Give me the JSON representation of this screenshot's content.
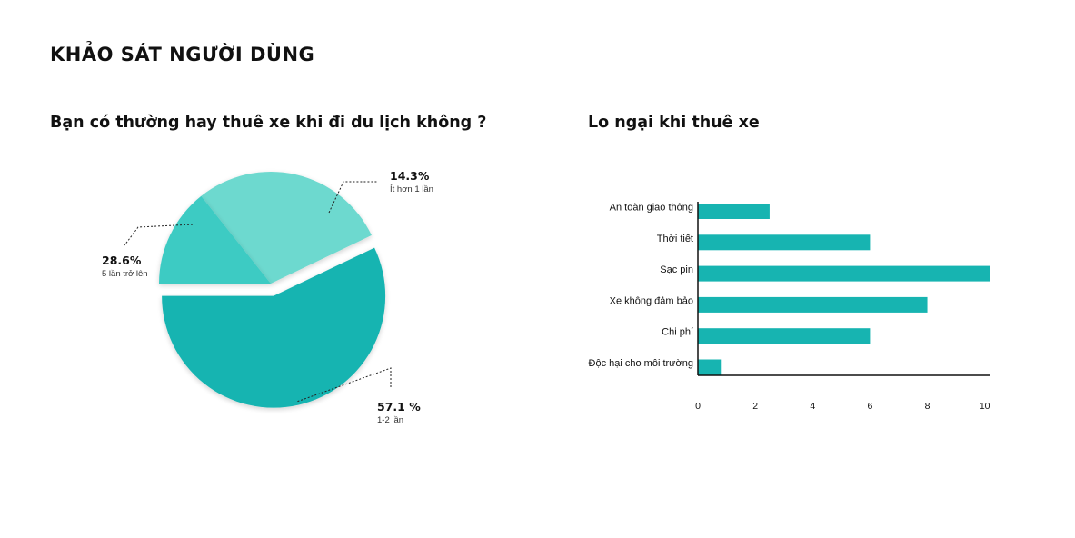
{
  "page": {
    "title": "KHẢO SÁT NGƯỜI DÙNG",
    "accent_color": "#2bb8b3"
  },
  "chart_data": [
    {
      "type": "pie",
      "title": "Bạn có thường hay thuê xe khi đi du lịch không ?",
      "slices": [
        {
          "label": "1-2 lần",
          "value_label": "57.1 %",
          "value": 57.1,
          "color": "#17b4b1",
          "exploded": true
        },
        {
          "label": "5 lần trở lên",
          "value_label": "28.6%",
          "value": 28.6,
          "color": "#6dd9cf",
          "exploded": false
        },
        {
          "label": "Ít hơn 1 lần",
          "value_label": "14.3%",
          "value": 14.3,
          "color": "#3ecbc3",
          "exploded": false
        }
      ]
    },
    {
      "type": "bar",
      "orientation": "horizontal",
      "title": "Lo ngại khi thuê xe",
      "categories": [
        "An toàn giao thông",
        "Thời tiết",
        "Sạc pin",
        "Xe không đảm bảo",
        "Chi phí",
        "Độc hại cho môi trường"
      ],
      "values": [
        2.5,
        6,
        10.2,
        8,
        6,
        0.8
      ],
      "xlim": [
        0,
        10.2
      ],
      "xticks": [
        0,
        2,
        4,
        6,
        8,
        10
      ],
      "bar_color": "#17b4b1",
      "grid": false,
      "xlabel": "",
      "ylabel": ""
    }
  ]
}
